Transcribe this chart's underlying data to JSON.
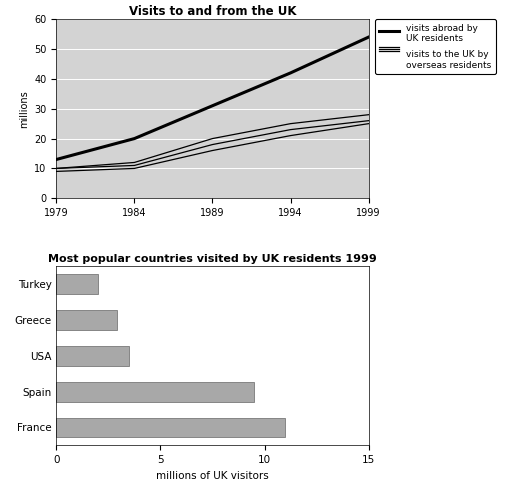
{
  "line_title": "Visits to and from the UK",
  "bar_title": "Most popular countries visited by UK residents 1999",
  "years": [
    1979,
    1984,
    1989,
    1994,
    1999
  ],
  "visits_abroad": [
    13,
    20,
    31,
    42,
    54
  ],
  "overseas_upper": [
    10,
    12,
    20,
    25,
    28
  ],
  "overseas_mid": [
    10,
    11,
    18,
    23,
    26
  ],
  "overseas_lower": [
    9,
    10,
    16,
    21,
    25
  ],
  "line_ylabel": "millions",
  "line_ylim": [
    0,
    60
  ],
  "line_xlim": [
    1979,
    1999
  ],
  "line_xticks": [
    1979,
    1984,
    1989,
    1994,
    1999
  ],
  "legend_abroad": "visits abroad by\nUK residents",
  "legend_overseas": "visits to the UK by\noverseas residents",
  "bar_categories": [
    "Turkey",
    "Greece",
    "USA",
    "Spain",
    "France"
  ],
  "bar_values": [
    2.0,
    2.9,
    3.5,
    9.5,
    11.0
  ],
  "bar_color": "#a8a8a8",
  "bar_xlabel": "millions of UK visitors",
  "bar_xlim": [
    0,
    15
  ],
  "bar_xticks": [
    0,
    5,
    10,
    15
  ],
  "bg_color": "#d3d3d3",
  "line_color_abroad": "#000000",
  "line_color_overseas": "#000000"
}
